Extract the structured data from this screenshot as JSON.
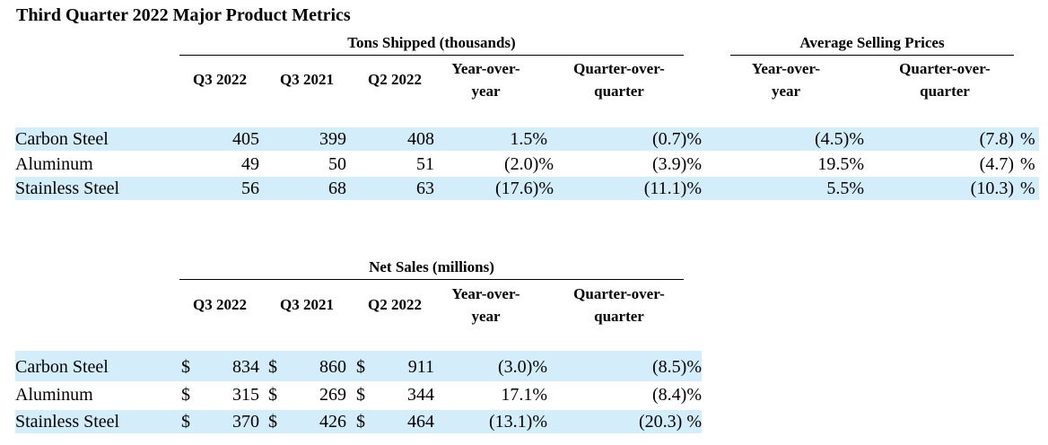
{
  "title": "Third Quarter 2022 Major Product Metrics",
  "tons": {
    "group_label": "Tons Shipped (thousands)",
    "asp_label": "Average Selling Prices",
    "headers": [
      "Q3 2022",
      "Q3 2021",
      "Q2 2022",
      "Year-over-year",
      "Quarter-over-quarter"
    ],
    "asp_headers": [
      "Year-over-year",
      "Quarter-over-quarter"
    ],
    "rows": [
      {
        "label": "Carbon Steel",
        "q3_2022": "405",
        "q3_2021": "399",
        "q2_2022": "408",
        "yoy": "1.5%",
        "qoq": "(0.7)%",
        "asp_yoy": "(4.5)%",
        "asp_qoq": "(7.8)",
        "asp_qoq_unit": "%"
      },
      {
        "label": "Aluminum",
        "q3_2022": "49",
        "q3_2021": "50",
        "q2_2022": "51",
        "yoy": "(2.0)%",
        "qoq": "(3.9)%",
        "asp_yoy": "19.5%",
        "asp_qoq": "(4.7)",
        "asp_qoq_unit": "%"
      },
      {
        "label": "Stainless Steel",
        "q3_2022": "56",
        "q3_2021": "68",
        "q2_2022": "63",
        "yoy": "(17.6)%",
        "qoq": "(11.1)%",
        "asp_yoy": "5.5%",
        "asp_qoq": "(10.3)",
        "asp_qoq_unit": "%"
      }
    ]
  },
  "sales": {
    "group_label": "Net Sales (millions)",
    "headers": [
      "Q3 2022",
      "Q3 2021",
      "Q2 2022",
      "Year-over-year",
      "Quarter-over-quarter"
    ],
    "currency": "$",
    "rows": [
      {
        "label": "Carbon Steel",
        "q3_2022": "834",
        "q3_2021": "860",
        "q2_2022": "911",
        "yoy": "(3.0)%",
        "qoq": "(8.5)%"
      },
      {
        "label": "Aluminum",
        "q3_2022": "315",
        "q3_2021": "269",
        "q2_2022": "344",
        "yoy": "17.1%",
        "qoq": "(8.4)%"
      },
      {
        "label": "Stainless Steel",
        "q3_2022": "370",
        "q3_2021": "426",
        "q2_2022": "464",
        "yoy": "(13.1)%",
        "qoq": "(20.3) %"
      }
    ]
  }
}
